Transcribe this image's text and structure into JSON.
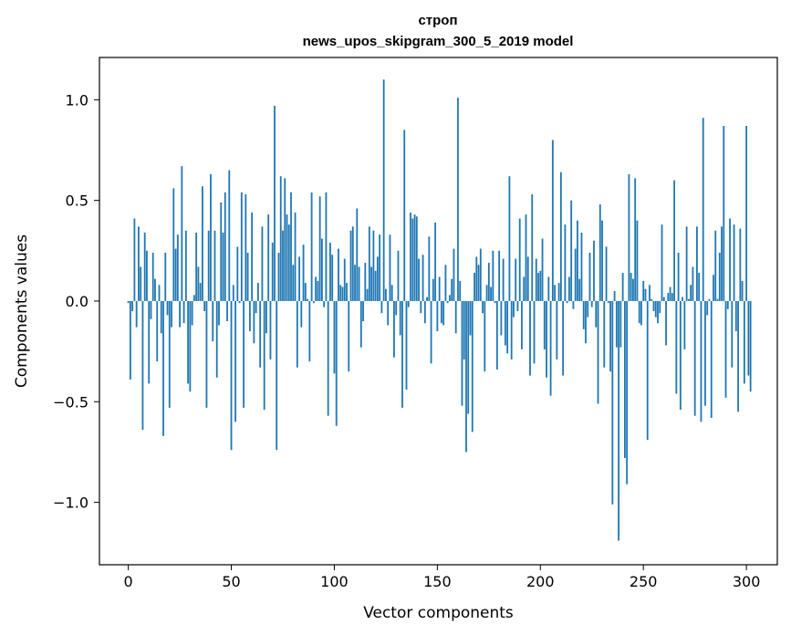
{
  "chart_data": {
    "type": "bar",
    "title": [
      "строп",
      "news_upos_skipgram_300_5_2019 model"
    ],
    "xlabel": "Vector components",
    "ylabel": "Components values",
    "xlim": [
      -14,
      315
    ],
    "ylim": [
      -1.31,
      1.21
    ],
    "xticks": [
      0,
      50,
      100,
      150,
      200,
      250,
      300
    ],
    "xtick_labels": [
      "0",
      "50",
      "100",
      "150",
      "200",
      "250",
      "300"
    ],
    "yticks": [
      -1.0,
      -0.5,
      0.0,
      0.5,
      1.0
    ],
    "ytick_labels": [
      "−1.0",
      "−0.5",
      "0.0",
      "0.5",
      "1.0"
    ],
    "grid": false,
    "bar_color": "#1f77b4",
    "values": [
      -0.01,
      -0.39,
      -0.05,
      0.41,
      -0.13,
      0.37,
      0.17,
      -0.64,
      0.34,
      0.25,
      -0.41,
      -0.09,
      0.24,
      0.11,
      -0.3,
      0.08,
      -0.16,
      -0.67,
      0.24,
      -0.07,
      -0.53,
      -0.13,
      0.56,
      0.26,
      0.33,
      -0.13,
      0.67,
      -0.11,
      0.35,
      -0.41,
      -0.45,
      -0.12,
      0.03,
      0.34,
      0.17,
      0.09,
      0.57,
      -0.05,
      -0.53,
      0.35,
      0.63,
      -0.2,
      0.35,
      -0.38,
      -0.12,
      0.49,
      0.34,
      0.54,
      -0.1,
      0.65,
      -0.74,
      0.08,
      -0.6,
      0.27,
      -0.01,
      0.54,
      -0.53,
      0.53,
      0.24,
      -0.15,
      0.44,
      -0.21,
      -0.06,
      0.09,
      -0.33,
      0.37,
      -0.54,
      -0.16,
      0.43,
      -0.29,
      0.29,
      0.97,
      -0.74,
      0.24,
      0.62,
      0.35,
      0.61,
      0.43,
      0.38,
      0.54,
      0.18,
      0.44,
      -0.33,
      0.22,
      -0.13,
      0.28,
      0.09,
      0.01,
      -0.3,
      0.54,
      -0.01,
      0.12,
      0.1,
      0.52,
      0.31,
      -0.03,
      0.54,
      -0.57,
      0.29,
      0.23,
      -0.36,
      -0.62,
      0.26,
      0.08,
      0.07,
      0.21,
      0.09,
      -0.35,
      0.35,
      0.37,
      0.18,
      0.46,
      0.17,
      -0.23,
      -0.1,
      0.19,
      0.06,
      0.37,
      0.17,
      0.35,
      0.15,
      0.22,
      0.33,
      -0.06,
      1.1,
      0.06,
      -0.12,
      0.33,
      0.08,
      -0.28,
      -0.07,
      0.25,
      -0.17,
      -0.53,
      0.85,
      -0.44,
      -0.03,
      0.44,
      0.41,
      0.43,
      0.42,
      0.21,
      -0.06,
      0.23,
      -0.11,
      0.02,
      0.32,
      -0.31,
      0.11,
      0.39,
      -0.15,
      0.12,
      -0.11,
      -0.12,
      0.18,
      -0.01,
      0.03,
      0.11,
      0.26,
      -0.16,
      1.01,
      0.1,
      -0.52,
      -0.29,
      -0.75,
      -0.56,
      -0.17,
      -0.65,
      0.14,
      0.22,
      0.18,
      0.26,
      -0.06,
      -0.35,
      0.08,
      0.19,
      0.07,
      0.25,
      -0.01,
      -0.34,
      0.25,
      -0.17,
      0.21,
      -0.22,
      -0.26,
      0.62,
      -0.29,
      -0.08,
      0.21,
      -0.05,
      0.41,
      -0.24,
      0.12,
      0.43,
      0.22,
      -0.37,
      0.53,
      -0.31,
      0.21,
      0.14,
      0.15,
      0.31,
      -0.24,
      -0.38,
      0.12,
      -0.47,
      0.8,
      0.08,
      -0.29,
      0.09,
      0.64,
      -0.37,
      0.38,
      -0.01,
      0.12,
      0.5,
      -0.04,
      0.26,
      0.4,
      0.11,
      0.34,
      -0.14,
      -0.21,
      -0.08,
      0.24,
      -0.03,
      0.3,
      -0.13,
      -0.51,
      0.48,
      0.4,
      -0.33,
      0.27,
      -0.01,
      -0.35,
      -1.01,
      0.05,
      -0.23,
      -1.19,
      -0.23,
      0.14,
      -0.78,
      -0.91,
      0.63,
      0.14,
      0.11,
      0.61,
      0.4,
      -0.11,
      -0.12,
      0.1,
      0.06,
      -0.69,
      0.08,
      0.01,
      -0.05,
      -0.08,
      -0.11,
      -0.06,
      0.38,
      0.02,
      -0.22,
      0.04,
      0.07,
      0.04,
      0.6,
      -0.46,
      0.24,
      -0.54,
      0.02,
      -0.24,
      0.37,
      0.01,
      0.08,
      0.17,
      -0.57,
      0.37,
      0.14,
      -0.6,
      0.91,
      -0.52,
      -0.07,
      0.01,
      -0.58,
      0.13,
      0.35,
      0.01,
      0.24,
      0.37,
      0.87,
      -0.48,
      -0.04,
      0.41,
      -0.33,
      0.38,
      -0.15,
      -0.55,
      0.36,
      0.1,
      -0.41,
      0.87,
      -0.37,
      -0.45
    ]
  }
}
